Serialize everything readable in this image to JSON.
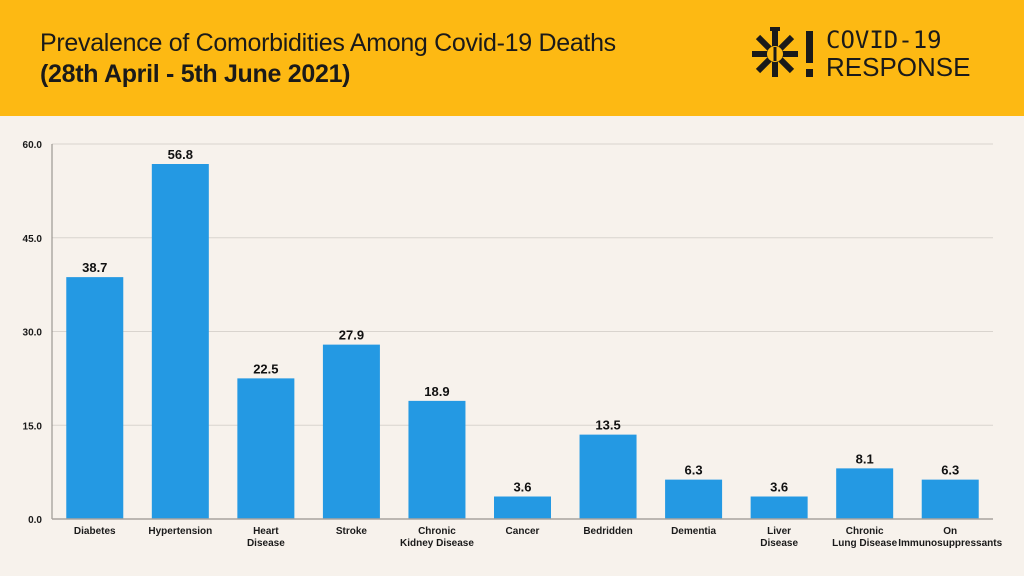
{
  "header": {
    "title_line1": "Prevalence of Comorbidities Among Covid-19 Deaths",
    "title_line2": "(28th April - 5th June 2021)",
    "logo_line1": "COVID-19",
    "logo_line2": "RESPONSE",
    "background_color": "#fdb913"
  },
  "chart_data": {
    "type": "bar",
    "title": "Prevalence of Comorbidities Among Covid-19 Deaths (28th April - 5th June 2021)",
    "xlabel": "",
    "ylabel": "",
    "ylim": [
      0,
      60
    ],
    "yticks": [
      "0.0",
      "15.0",
      "30.0",
      "45.0",
      "60.0"
    ],
    "ytick_values": [
      0,
      15,
      30,
      45,
      60
    ],
    "grid": true,
    "bar_color": "#2499e3",
    "categories": [
      [
        "Diabetes"
      ],
      [
        "Hypertension"
      ],
      [
        "Heart",
        "Disease"
      ],
      [
        "Stroke"
      ],
      [
        "Chronic",
        "Kidney Disease"
      ],
      [
        "Cancer"
      ],
      [
        "Bedridden"
      ],
      [
        "Dementia"
      ],
      [
        "Liver",
        "Disease"
      ],
      [
        "Chronic",
        "Lung Disease"
      ],
      [
        "On",
        "Immunosuppressants"
      ]
    ],
    "values": [
      38.7,
      56.8,
      22.5,
      27.9,
      18.9,
      3.6,
      13.5,
      6.3,
      3.6,
      8.1,
      6.3
    ],
    "value_labels": [
      "38.7",
      "56.8",
      "22.5",
      "27.9",
      "18.9",
      "3.6",
      "13.5",
      "6.3",
      "3.6",
      "8.1",
      "6.3"
    ]
  }
}
